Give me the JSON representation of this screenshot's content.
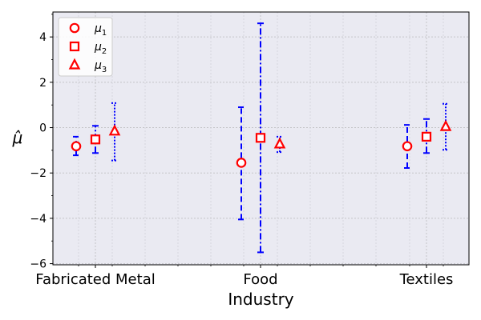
{
  "chart_data": {
    "type": "errorbar",
    "xlabel": "Industry",
    "ylabel": "μ̂",
    "categories": [
      "Fabricated Metal",
      "Food",
      "Textiles"
    ],
    "y_ticks": [
      "−6",
      "−4",
      "−2",
      "0",
      "2",
      "4"
    ],
    "ylim": [
      -6.05,
      5.1
    ],
    "grid": true,
    "legend_position": "top-left",
    "series": [
      {
        "label_main": "μ",
        "label_sub": "1",
        "marker": "circle",
        "color": "#ff0000",
        "error_color": "#0000ff",
        "error_style": "dashed",
        "points": [
          {
            "category": "Fabricated Metal",
            "y": -0.82,
            "lower": -1.22,
            "upper": -0.4
          },
          {
            "category": "Food",
            "y": -1.55,
            "lower": -4.05,
            "upper": 0.9
          },
          {
            "category": "Textiles",
            "y": -0.82,
            "lower": -1.78,
            "upper": 0.12
          }
        ]
      },
      {
        "label_main": "μ",
        "label_sub": "2",
        "marker": "square",
        "color": "#ff0000",
        "error_color": "#0000ff",
        "error_style": "dashdot",
        "points": [
          {
            "category": "Fabricated Metal",
            "y": -0.52,
            "lower": -1.12,
            "upper": 0.08
          },
          {
            "category": "Food",
            "y": -0.45,
            "lower": -5.5,
            "upper": 4.6
          },
          {
            "category": "Textiles",
            "y": -0.4,
            "lower": -1.12,
            "upper": 0.38
          }
        ]
      },
      {
        "label_main": "μ",
        "label_sub": "3",
        "marker": "triangle",
        "color": "#ff0000",
        "error_color": "#0000ff",
        "error_style": "dotted",
        "points": [
          {
            "category": "Fabricated Metal",
            "y": -0.15,
            "lower": -1.45,
            "upper": 1.08
          },
          {
            "category": "Food",
            "y": -0.72,
            "lower": -1.08,
            "upper": -0.4
          },
          {
            "category": "Textiles",
            "y": 0.05,
            "lower": -0.98,
            "upper": 1.05
          }
        ]
      }
    ]
  }
}
